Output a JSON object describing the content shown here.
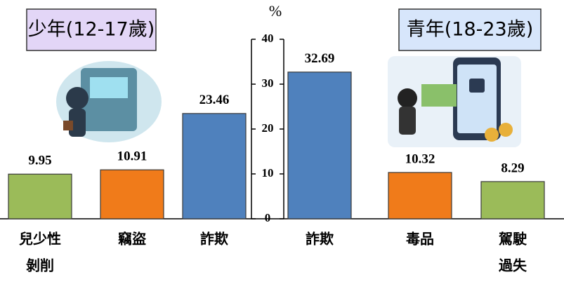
{
  "chart_data": [
    {
      "type": "bar",
      "title": "少年(12-17歲)",
      "ylabel": "%",
      "categories": [
        [
          "兒少性",
          "剝削"
        ],
        [
          "竊盜"
        ],
        [
          "詐欺"
        ]
      ],
      "values": [
        9.95,
        10.91,
        23.46
      ],
      "colors": [
        "#9bbb59",
        "#f07b1a",
        "#4f81bd"
      ],
      "ylim": [
        0,
        40
      ],
      "yticks": [
        0,
        10,
        20,
        30,
        40
      ]
    },
    {
      "type": "bar",
      "title": "青年(18-23歲)",
      "categories": [
        [
          "詐欺"
        ],
        [
          "毒品"
        ],
        [
          "駕駛",
          "過失"
        ]
      ],
      "values": [
        32.69,
        10.32,
        8.29
      ],
      "colors": [
        "#4f81bd",
        "#f07b1a",
        "#9bbb59"
      ],
      "ylim": [
        0,
        40
      ]
    }
  ]
}
